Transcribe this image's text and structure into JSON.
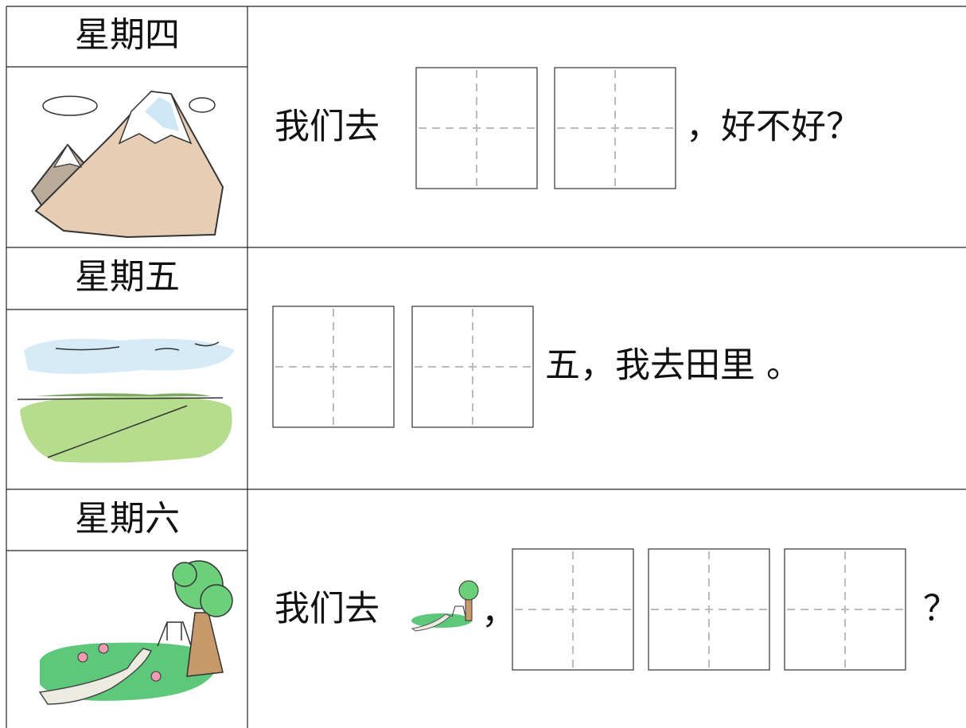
{
  "rows": [
    {
      "day": "星期四",
      "text": [
        "我们去",
        "，好不好？"
      ]
    },
    {
      "day": "星期五",
      "text": [
        "五，我去田里 。"
      ]
    },
    {
      "day": "星期六",
      "text": [
        "我们去",
        "，",
        "？"
      ]
    }
  ]
}
